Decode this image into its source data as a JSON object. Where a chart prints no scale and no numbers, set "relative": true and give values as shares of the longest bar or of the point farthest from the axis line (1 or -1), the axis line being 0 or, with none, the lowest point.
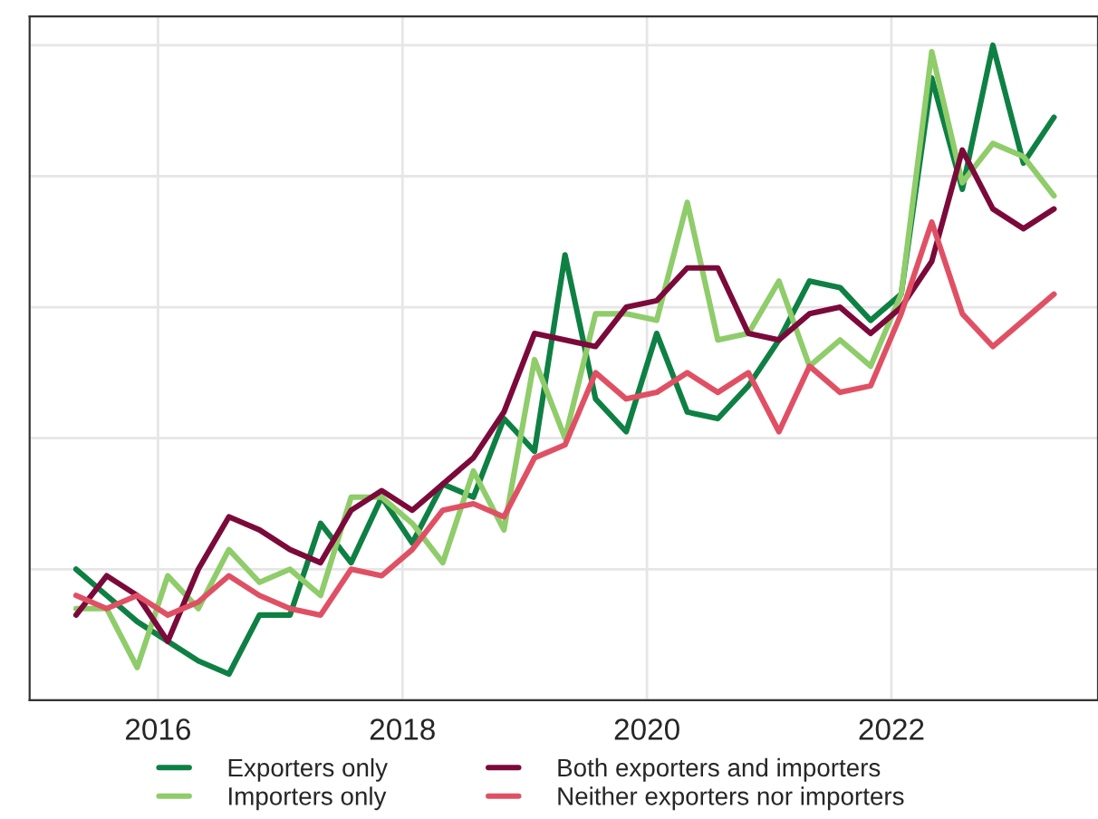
{
  "chart_data": {
    "type": "line",
    "relative": true,
    "x": [
      2015.33,
      2015.58,
      2015.83,
      2016.08,
      2016.33,
      2016.58,
      2016.83,
      2017.08,
      2017.33,
      2017.58,
      2017.83,
      2018.08,
      2018.33,
      2018.58,
      2018.83,
      2019.08,
      2019.33,
      2019.58,
      2019.83,
      2020.08,
      2020.33,
      2020.58,
      2020.83,
      2021.08,
      2021.33,
      2021.58,
      2021.83,
      2022.08,
      2022.33,
      2022.58,
      2022.83,
      2023.08,
      2023.33
    ],
    "xlim": [
      2014.95,
      2023.69
    ],
    "xticks": [
      2016,
      2018,
      2020,
      2022
    ],
    "series": [
      {
        "name": "Exporters only",
        "color": "#0e8044",
        "values": [
          0.2,
          0.16,
          0.12,
          0.09,
          0.06,
          0.04,
          0.13,
          0.13,
          0.27,
          0.21,
          0.31,
          0.24,
          0.33,
          0.31,
          0.43,
          0.38,
          0.68,
          0.46,
          0.41,
          0.56,
          0.44,
          0.43,
          0.48,
          0.55,
          0.64,
          0.63,
          0.58,
          0.62,
          0.95,
          0.78,
          1.0,
          0.82,
          0.89
        ]
      },
      {
        "name": "Importers only",
        "color": "#8fcc6a",
        "values": [
          0.14,
          0.14,
          0.05,
          0.19,
          0.14,
          0.23,
          0.18,
          0.2,
          0.16,
          0.31,
          0.31,
          0.27,
          0.21,
          0.35,
          0.26,
          0.52,
          0.4,
          0.59,
          0.59,
          0.58,
          0.76,
          0.55,
          0.56,
          0.64,
          0.51,
          0.55,
          0.51,
          0.62,
          0.99,
          0.79,
          0.85,
          0.83,
          0.77
        ]
      },
      {
        "name": "Both exporters and importers",
        "color": "#7b0a3a",
        "values": [
          0.13,
          0.19,
          0.16,
          0.09,
          0.2,
          0.28,
          0.26,
          0.23,
          0.21,
          0.29,
          0.32,
          0.29,
          0.33,
          0.37,
          0.44,
          0.56,
          0.55,
          0.54,
          0.6,
          0.61,
          0.66,
          0.66,
          0.56,
          0.55,
          0.59,
          0.6,
          0.56,
          0.6,
          0.67,
          0.84,
          0.75,
          0.72,
          0.75
        ]
      },
      {
        "name": "Neither exporters nor importers",
        "color": "#e05064",
        "values": [
          0.16,
          0.14,
          0.16,
          0.13,
          0.15,
          0.19,
          0.16,
          0.14,
          0.13,
          0.2,
          0.19,
          0.23,
          0.29,
          0.3,
          0.28,
          0.37,
          0.39,
          0.5,
          0.46,
          0.47,
          0.5,
          0.47,
          0.5,
          0.41,
          0.51,
          0.47,
          0.48,
          0.59,
          0.73,
          0.59,
          0.54,
          0.58,
          0.62
        ]
      }
    ],
    "grid": true,
    "legend": "bottom",
    "line_style": "solid"
  }
}
